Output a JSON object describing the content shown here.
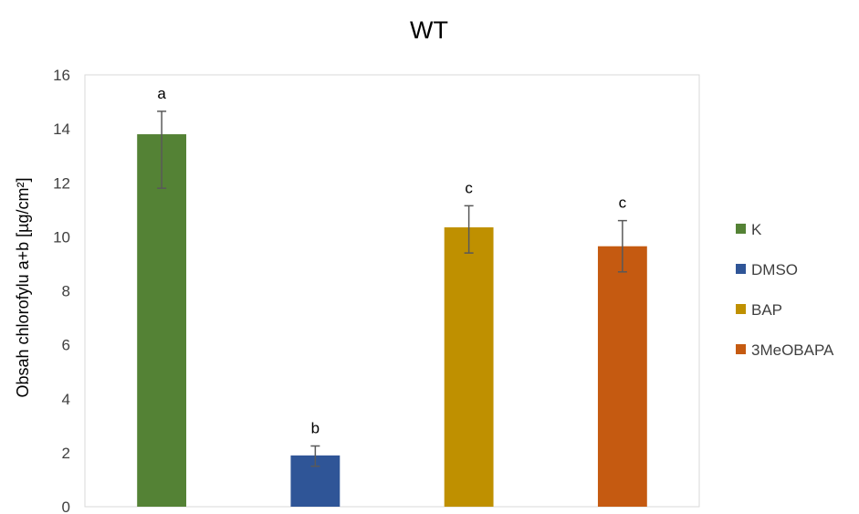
{
  "chart_data": {
    "type": "bar",
    "title": "WT",
    "xlabel": "",
    "ylabel": "Obsah chlorofylu a+b [µg/cm²]",
    "ylim": [
      0,
      16
    ],
    "yticks": [
      0,
      2,
      4,
      6,
      8,
      10,
      12,
      14,
      16
    ],
    "grid": false,
    "legend_position": "right",
    "categories": [
      "K",
      "DMSO",
      "BAP",
      "3MeOBAPA"
    ],
    "values": [
      13.8,
      1.9,
      10.35,
      9.65
    ],
    "error_low": [
      11.8,
      1.5,
      9.4,
      8.7
    ],
    "error_high": [
      14.65,
      2.25,
      11.15,
      10.6
    ],
    "significance_labels": [
      "a",
      "b",
      "c",
      "c"
    ],
    "colors": [
      "#548235",
      "#2F5597",
      "#BF9000",
      "#C55A11"
    ]
  }
}
